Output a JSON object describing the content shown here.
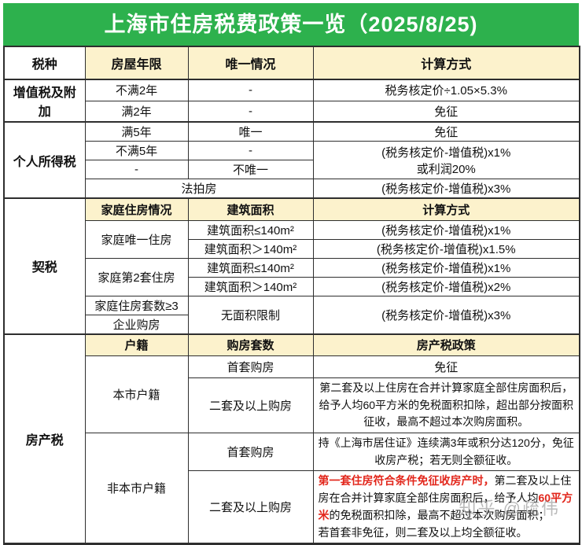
{
  "title": "上海市住房税费政策一览（2025/8/25)",
  "watermark": "知乎 @疏伟",
  "colors": {
    "header_green": "#2DB14D",
    "subheader_yellow": "#FCF2CC",
    "highlight_red": "#E2261B",
    "border": "#2e2e2e"
  },
  "table": {
    "columns": {
      "tax_type": "税种",
      "house_years": "房屋年限",
      "unique_status": "唯一情况",
      "calc_method": "计算方式"
    },
    "vat": {
      "name": "增值税及附加",
      "under2": {
        "years": "不满2年",
        "unique": "-",
        "calc": "税务核定价÷1.05×5.3%"
      },
      "over2": {
        "years": "满2年",
        "unique": "-",
        "calc": "免征"
      }
    },
    "income": {
      "name": "个人所得税",
      "over5": {
        "years": "满5年",
        "unique": "唯一",
        "calc": "免征"
      },
      "under5": {
        "years": "不满5年",
        "unique": "-"
      },
      "notunique": {
        "years": "-",
        "unique": "不唯一"
      },
      "merged_calc_line1": "(税务核定价-增值税)x1%",
      "merged_calc_line2": "或利润20%",
      "auction": {
        "label": "法拍房",
        "calc": "(税务核定价-增值税)x3%"
      }
    },
    "deed": {
      "name": "契税",
      "columns": {
        "family_status": "家庭住房情况",
        "building_area": "建筑面积",
        "calc_method": "计算方式"
      },
      "only_home": {
        "label": "家庭唯一住房",
        "small": {
          "area": "建筑面积≤140m²",
          "calc": "(税务核定价-增值税)x1%"
        },
        "large": {
          "area": "建筑面积＞140m²",
          "calc": "(税务核定价-增值税)x1.5%"
        }
      },
      "second_home": {
        "label": "家庭第2套住房",
        "small": {
          "area": "建筑面积≤140m²",
          "calc": "(税务核定价-增值税)x1%"
        },
        "large": {
          "area": "建筑面积＞140m²",
          "calc": "(税务核定价-增值税)x2%"
        }
      },
      "three_plus": {
        "label": "家庭住房套数≥3"
      },
      "company": {
        "label": "企业购房"
      },
      "no_limit": {
        "area": "无面积限制",
        "calc": "(税务核定价-增值税)x3%"
      }
    },
    "property": {
      "name": "房产税",
      "columns": {
        "household": "户籍",
        "purchase_count": "购房套数",
        "policy": "房产税政策"
      },
      "local": {
        "label": "本市户籍",
        "first": {
          "count": "首套购房",
          "policy": "免征"
        },
        "second": {
          "count": "二套及以上购房",
          "policy": "第二套及以上住房在合并计算家庭全部住房面积后，给予人均60平方米的免税面积扣除，超出部分按面积征收，最高不超过本次购房面积。"
        }
      },
      "nonlocal": {
        "label": "非本市户籍",
        "first": {
          "count": "首套购房",
          "policy": "持《上海市居住证》连续满3年或积分达120分，免征收房产税；若无则全额征收。"
        },
        "second": {
          "count": "二套及以上购房",
          "policy_segments": [
            {
              "text": "第一套住房符合条件免征收房产时，",
              "red": true
            },
            {
              "text": "第二套及以上住房在合并计算家庭全部住房面积后，给予人均",
              "red": false
            },
            {
              "text": "60平方米",
              "red": true
            },
            {
              "text": "的免税面积扣除，最高不超过本次购房面积；",
              "red": false
            },
            {
              "br": true
            },
            {
              "text": "若首套非免征，则二套及以上均全额征收。",
              "red": false
            }
          ]
        }
      }
    }
  }
}
